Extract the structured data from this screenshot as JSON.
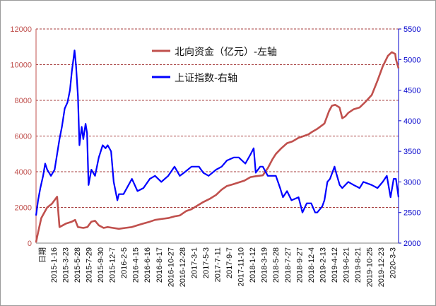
{
  "chart_data": {
    "type": "line",
    "title": "",
    "xlabel": "",
    "ylabel_left": "",
    "ylabel_right": "",
    "x_axis_first_label": "日期",
    "y_left": {
      "min": 0,
      "max": 12000,
      "ticks": [
        "0",
        "2000",
        "4000",
        "6000",
        "8000",
        "10000",
        "12000"
      ]
    },
    "y_right": {
      "min": 2000,
      "max": 5500,
      "ticks": [
        "2000",
        "2500",
        "3000",
        "3500",
        "4000",
        "4500",
        "5000",
        "5500"
      ]
    },
    "x_range": [
      "2014-11-17",
      "2020-03-17"
    ],
    "x_ticks": [
      "2015-1-16",
      "2015-3-23",
      "2015-5-28",
      "2015-7-29",
      "2015-9-30",
      "2015-12-7",
      "2016-2-5",
      "2016-4-15",
      "2016-6-16",
      "2016-8-17",
      "2016-10-27",
      "2016-12-28",
      "2017-3-1",
      "2017-5-3",
      "2017-7-11",
      "2017-9-7",
      "2017-11-10",
      "2018-1-12",
      "2018-3-19",
      "2018-5-28",
      "2018-7-27",
      "2018-9-27",
      "2018-12-4",
      "2019-2-13",
      "2019-4-12",
      "2019-6-21",
      "2019-8-21",
      "2019-10-25",
      "2019-12-23",
      "2020-3-3"
    ],
    "grid": {
      "horizontal": true,
      "style": "dashed",
      "color": "#8b0000"
    },
    "legend_placement": "top-center",
    "series": [
      {
        "name": "北向资金（亿元）-左轴",
        "axis": "left",
        "color": "#c0504d",
        "points": [
          [
            "2014-11-17",
            50
          ],
          [
            "2014-11-28",
            600
          ],
          [
            "2014-12-15",
            1400
          ],
          [
            "2015-01-05",
            1800
          ],
          [
            "2015-01-16",
            2000
          ],
          [
            "2015-02-10",
            2200
          ],
          [
            "2015-03-10",
            2600
          ],
          [
            "2015-03-23",
            900
          ],
          [
            "2015-04-10",
            1000
          ],
          [
            "2015-04-28",
            1100
          ],
          [
            "2015-05-28",
            1200
          ],
          [
            "2015-06-15",
            1300
          ],
          [
            "2015-06-30",
            900
          ],
          [
            "2015-07-29",
            850
          ],
          [
            "2015-08-20",
            900
          ],
          [
            "2015-09-10",
            1200
          ],
          [
            "2015-09-30",
            1250
          ],
          [
            "2015-10-20",
            1000
          ],
          [
            "2015-11-15",
            850
          ],
          [
            "2015-12-07",
            900
          ],
          [
            "2016-01-05",
            850
          ],
          [
            "2016-02-05",
            800
          ],
          [
            "2016-03-10",
            850
          ],
          [
            "2016-04-15",
            900
          ],
          [
            "2016-05-15",
            1000
          ],
          [
            "2016-06-16",
            1100
          ],
          [
            "2016-07-20",
            1200
          ],
          [
            "2016-08-17",
            1300
          ],
          [
            "2016-09-20",
            1350
          ],
          [
            "2016-10-27",
            1400
          ],
          [
            "2016-12-01",
            1500
          ],
          [
            "2016-12-28",
            1550
          ],
          [
            "2017-02-01",
            1800
          ],
          [
            "2017-03-01",
            1900
          ],
          [
            "2017-04-01",
            2100
          ],
          [
            "2017-05-03",
            2300
          ],
          [
            "2017-06-10",
            2500
          ],
          [
            "2017-07-11",
            2700
          ],
          [
            "2017-08-10",
            3000
          ],
          [
            "2017-09-07",
            3200
          ],
          [
            "2017-10-10",
            3300
          ],
          [
            "2017-11-10",
            3400
          ],
          [
            "2017-12-10",
            3500
          ],
          [
            "2018-01-12",
            3700
          ],
          [
            "2018-02-10",
            3750
          ],
          [
            "2018-03-19",
            3800
          ],
          [
            "2018-04-15",
            4200
          ],
          [
            "2018-05-10",
            4700
          ],
          [
            "2018-05-28",
            5000
          ],
          [
            "2018-06-25",
            5300
          ],
          [
            "2018-07-27",
            5600
          ],
          [
            "2018-08-25",
            5700
          ],
          [
            "2018-09-27",
            5900
          ],
          [
            "2018-10-25",
            6000
          ],
          [
            "2018-11-20",
            6100
          ],
          [
            "2018-12-04",
            6200
          ],
          [
            "2019-01-05",
            6400
          ],
          [
            "2019-02-13",
            6700
          ],
          [
            "2019-03-10",
            7400
          ],
          [
            "2019-03-25",
            7700
          ],
          [
            "2019-04-12",
            7750
          ],
          [
            "2019-05-05",
            7600
          ],
          [
            "2019-05-20",
            7000
          ],
          [
            "2019-06-05",
            7100
          ],
          [
            "2019-06-21",
            7300
          ],
          [
            "2019-07-20",
            7500
          ],
          [
            "2019-08-21",
            7600
          ],
          [
            "2019-09-20",
            7900
          ],
          [
            "2019-10-25",
            8300
          ],
          [
            "2019-11-25",
            9100
          ],
          [
            "2019-12-23",
            9900
          ],
          [
            "2020-01-20",
            10500
          ],
          [
            "2020-02-10",
            10700
          ],
          [
            "2020-02-28",
            10600
          ],
          [
            "2020-03-03",
            10300
          ],
          [
            "2020-03-17",
            9800
          ]
        ]
      },
      {
        "name": "上证指数-右轴",
        "axis": "right",
        "color": "#0000ff",
        "points": [
          [
            "2014-11-17",
            2450
          ],
          [
            "2014-11-28",
            2700
          ],
          [
            "2014-12-10",
            2900
          ],
          [
            "2014-12-25",
            3100
          ],
          [
            "2015-01-05",
            3300
          ],
          [
            "2015-01-16",
            3200
          ],
          [
            "2015-02-05",
            3100
          ],
          [
            "2015-02-25",
            3200
          ],
          [
            "2015-03-23",
            3700
          ],
          [
            "2015-04-05",
            3900
          ],
          [
            "2015-04-20",
            4200
          ],
          [
            "2015-05-05",
            4300
          ],
          [
            "2015-05-18",
            4500
          ],
          [
            "2015-05-28",
            4800
          ],
          [
            "2015-06-12",
            5150
          ],
          [
            "2015-06-20",
            4900
          ],
          [
            "2015-06-30",
            4400
          ],
          [
            "2015-07-08",
            3600
          ],
          [
            "2015-07-20",
            3900
          ],
          [
            "2015-07-29",
            3700
          ],
          [
            "2015-08-10",
            3950
          ],
          [
            "2015-08-18",
            3800
          ],
          [
            "2015-08-26",
            2950
          ],
          [
            "2015-09-10",
            3200
          ],
          [
            "2015-09-30",
            3100
          ],
          [
            "2015-10-20",
            3400
          ],
          [
            "2015-11-10",
            3600
          ],
          [
            "2015-11-25",
            3550
          ],
          [
            "2015-12-07",
            3600
          ],
          [
            "2015-12-25",
            3500
          ],
          [
            "2016-01-08",
            3000
          ],
          [
            "2016-01-28",
            2700
          ],
          [
            "2016-02-05",
            2800
          ],
          [
            "2016-03-01",
            2800
          ],
          [
            "2016-04-15",
            3050
          ],
          [
            "2016-05-15",
            2850
          ],
          [
            "2016-06-16",
            2900
          ],
          [
            "2016-07-20",
            3050
          ],
          [
            "2016-08-17",
            3100
          ],
          [
            "2016-09-20",
            3000
          ],
          [
            "2016-10-27",
            3100
          ],
          [
            "2016-11-30",
            3250
          ],
          [
            "2016-12-28",
            3100
          ],
          [
            "2017-01-20",
            3150
          ],
          [
            "2017-03-01",
            3250
          ],
          [
            "2017-04-10",
            3250
          ],
          [
            "2017-05-03",
            3150
          ],
          [
            "2017-06-01",
            3100
          ],
          [
            "2017-07-11",
            3200
          ],
          [
            "2017-08-10",
            3250
          ],
          [
            "2017-09-07",
            3350
          ],
          [
            "2017-10-15",
            3400
          ],
          [
            "2017-11-10",
            3400
          ],
          [
            "2017-12-15",
            3300
          ],
          [
            "2018-01-12",
            3450
          ],
          [
            "2018-01-29",
            3550
          ],
          [
            "2018-02-09",
            3150
          ],
          [
            "2018-03-05",
            3250
          ],
          [
            "2018-03-19",
            3250
          ],
          [
            "2018-04-15",
            3100
          ],
          [
            "2018-05-28",
            3100
          ],
          [
            "2018-06-20",
            2900
          ],
          [
            "2018-07-05",
            2750
          ],
          [
            "2018-07-27",
            2850
          ],
          [
            "2018-08-20",
            2700
          ],
          [
            "2018-09-27",
            2750
          ],
          [
            "2018-10-18",
            2500
          ],
          [
            "2018-11-10",
            2650
          ],
          [
            "2018-12-04",
            2650
          ],
          [
            "2018-12-25",
            2500
          ],
          [
            "2019-01-05",
            2500
          ],
          [
            "2019-02-01",
            2600
          ],
          [
            "2019-02-13",
            2700
          ],
          [
            "2019-03-01",
            3000
          ],
          [
            "2019-03-15",
            3050
          ],
          [
            "2019-04-08",
            3250
          ],
          [
            "2019-04-12",
            3200
          ],
          [
            "2019-05-06",
            2950
          ],
          [
            "2019-05-20",
            2900
          ],
          [
            "2019-06-21",
            3000
          ],
          [
            "2019-07-20",
            2950
          ],
          [
            "2019-08-21",
            2900
          ],
          [
            "2019-09-10",
            3000
          ],
          [
            "2019-10-25",
            2950
          ],
          [
            "2019-11-25",
            2900
          ],
          [
            "2019-12-23",
            3000
          ],
          [
            "2020-01-14",
            3100
          ],
          [
            "2020-02-03",
            2750
          ],
          [
            "2020-02-20",
            3050
          ],
          [
            "2020-03-03",
            3050
          ],
          [
            "2020-03-17",
            2750
          ]
        ]
      }
    ]
  }
}
